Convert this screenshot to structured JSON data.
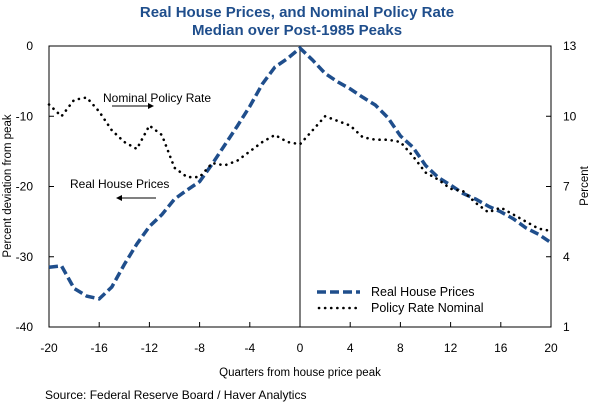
{
  "chart_data": {
    "type": "line",
    "title_line1": "Real House Prices, and Nominal Policy Rate",
    "title_line2": "Median over Post-1985 Peaks",
    "xlabel": "Quarters from house price peak",
    "ylabel_left": "Percent deviation from peak",
    "ylabel_right": "Percent",
    "source": "Source: Federal Reserve Board / Haver Analytics",
    "xlim": [
      -20,
      20
    ],
    "ylim_left": [
      -40,
      0
    ],
    "ylim_right": [
      1,
      13
    ],
    "x_ticks": [
      -20,
      -16,
      -12,
      -8,
      -4,
      0,
      4,
      8,
      12,
      16,
      20
    ],
    "y_left_ticks": [
      0,
      -10,
      -20,
      -30,
      -40
    ],
    "y_right_ticks": [
      13,
      10,
      7,
      4,
      1
    ],
    "grid": false,
    "legend_position": "bottom-right",
    "annotations": [
      {
        "text": "Nominal Policy Rate",
        "points": "right"
      },
      {
        "text": "Real House Prices",
        "points": "left"
      }
    ],
    "series": [
      {
        "name": "Real House Prices",
        "axis": "left",
        "color": "#1f4e8c",
        "style": "dashed",
        "x": [
          -20,
          -19,
          -18,
          -17,
          -16,
          -15,
          -14,
          -13,
          -12,
          -11,
          -10,
          -9,
          -8,
          -7,
          -6,
          -5,
          -4,
          -3,
          -2,
          -1,
          0,
          1,
          2,
          3,
          4,
          5,
          6,
          7,
          8,
          9,
          10,
          11,
          12,
          13,
          14,
          15,
          16,
          17,
          18,
          19,
          20
        ],
        "values": [
          -31.5,
          -31.3,
          -34.5,
          -35.6,
          -36.0,
          -34.3,
          -31.1,
          -28.2,
          -25.7,
          -24.0,
          -21.8,
          -20.5,
          -19.3,
          -16.8,
          -14.1,
          -11.4,
          -8.6,
          -5.4,
          -3.0,
          -1.8,
          -0.3,
          -2.0,
          -3.9,
          -5.1,
          -6.1,
          -7.3,
          -8.4,
          -10.2,
          -12.8,
          -14.4,
          -17.0,
          -18.7,
          -19.8,
          -21.0,
          -21.8,
          -22.8,
          -23.6,
          -24.6,
          -25.9,
          -26.8,
          -28.0
        ]
      },
      {
        "name": "Policy Rate Nominal",
        "axis": "right",
        "color": "#000000",
        "style": "dotted",
        "x": [
          -20,
          -19,
          -18,
          -17,
          -16,
          -15,
          -14,
          -13,
          -12,
          -11,
          -10,
          -9,
          -8,
          -7,
          -6,
          -5,
          -4,
          -3,
          -2,
          -1,
          0,
          1,
          2,
          3,
          4,
          5,
          6,
          7,
          8,
          9,
          10,
          11,
          12,
          13,
          14,
          15,
          16,
          17,
          18,
          19,
          20
        ],
        "values": [
          10.5,
          10.0,
          10.7,
          10.8,
          10.2,
          9.4,
          8.9,
          8.6,
          9.6,
          9.2,
          7.8,
          7.4,
          7.4,
          8.0,
          7.9,
          8.1,
          8.5,
          8.9,
          9.2,
          8.9,
          8.8,
          9.4,
          10.0,
          9.8,
          9.6,
          9.1,
          9.0,
          9.0,
          8.9,
          8.3,
          7.6,
          7.3,
          6.9,
          6.8,
          6.3,
          5.9,
          6.1,
          5.8,
          5.5,
          5.2,
          5.1
        ]
      }
    ]
  }
}
